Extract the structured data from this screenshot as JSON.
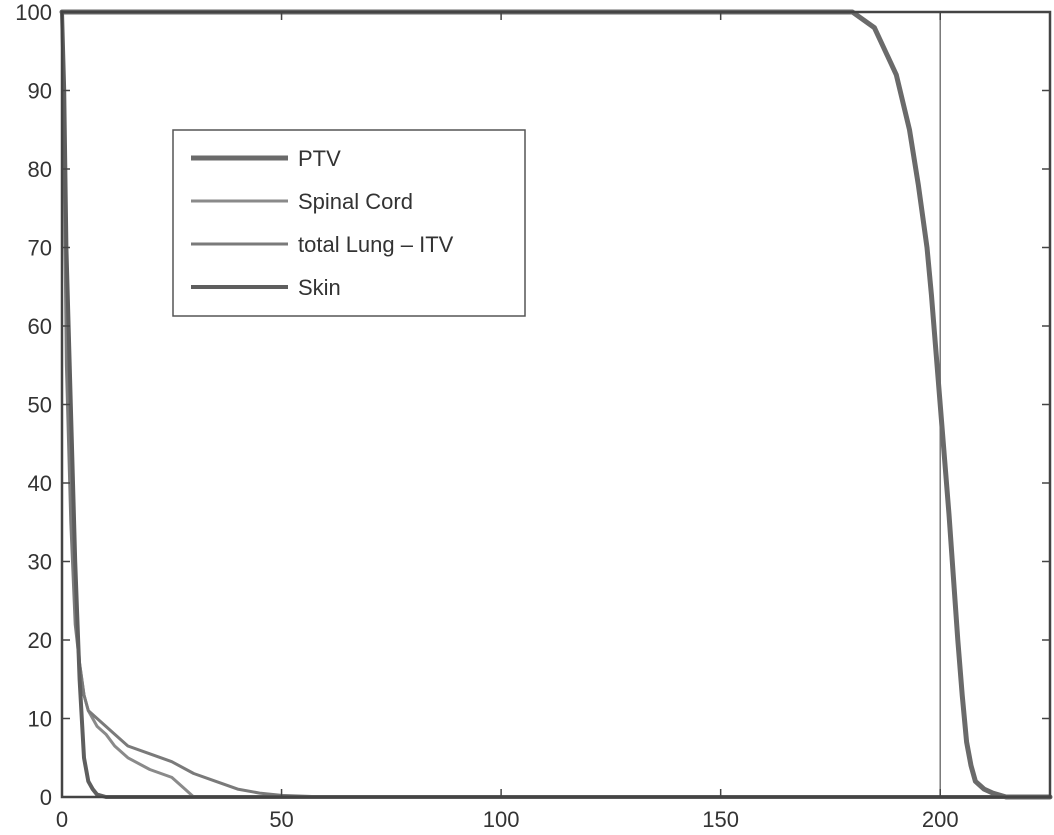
{
  "chart_data": {
    "type": "line",
    "title": "",
    "xlabel": "",
    "ylabel": "",
    "xlim": [
      0,
      225
    ],
    "ylim": [
      0,
      100
    ],
    "x_ticks": [
      0,
      50,
      100,
      150,
      200
    ],
    "y_ticks": [
      0,
      10,
      20,
      30,
      40,
      50,
      60,
      70,
      80,
      90,
      100
    ],
    "x_tick_labels": [
      "0",
      "50",
      "100",
      "150",
      "200"
    ],
    "y_tick_labels": [
      "0",
      "10",
      "20",
      "30",
      "40",
      "50",
      "60",
      "70",
      "80",
      "90",
      "100"
    ],
    "reference_line_x": 200,
    "grid": false,
    "legend_position": "upper-left",
    "series": [
      {
        "name": "PTV",
        "color": "#6a6a6a",
        "width": 5,
        "x": [
          0,
          150,
          180,
          185,
          190,
          193,
          195,
          197,
          198,
          199,
          200,
          201,
          202,
          203,
          204,
          205,
          206,
          207,
          208,
          210,
          212,
          215,
          225
        ],
        "y": [
          100,
          100,
          100,
          98,
          92,
          85,
          78,
          70,
          64,
          57,
          50,
          43,
          36,
          28,
          20,
          13,
          7,
          4,
          2,
          1,
          0.5,
          0,
          0
        ]
      },
      {
        "name": "Spinal Cord",
        "color": "#8a8a8a",
        "width": 3,
        "x": [
          0,
          0.5,
          1,
          2,
          3,
          4,
          5,
          6,
          8,
          10,
          12,
          15,
          20,
          25,
          28,
          30,
          225
        ],
        "y": [
          100,
          85,
          60,
          40,
          25,
          17,
          13,
          11,
          9,
          8,
          6.5,
          5,
          3.5,
          2.5,
          1,
          0,
          0
        ]
      },
      {
        "name": "total Lung – ITV",
        "color": "#7a7a7a",
        "width": 3,
        "x": [
          0,
          0.5,
          1,
          2,
          3,
          4,
          5,
          6,
          8,
          10,
          12,
          15,
          20,
          25,
          30,
          35,
          40,
          45,
          50,
          60,
          225
        ],
        "y": [
          100,
          80,
          55,
          35,
          22,
          17,
          13,
          11,
          10,
          9,
          8,
          6.5,
          5.5,
          4.5,
          3,
          2,
          1,
          0.5,
          0.2,
          0,
          0
        ]
      },
      {
        "name": "Skin",
        "color": "#5e5e5e",
        "width": 4,
        "x": [
          0,
          0.5,
          1,
          2,
          3,
          4,
          5,
          6,
          7,
          8,
          10,
          225
        ],
        "y": [
          100,
          90,
          70,
          50,
          30,
          15,
          5,
          2,
          1,
          0.3,
          0,
          0
        ]
      }
    ]
  }
}
